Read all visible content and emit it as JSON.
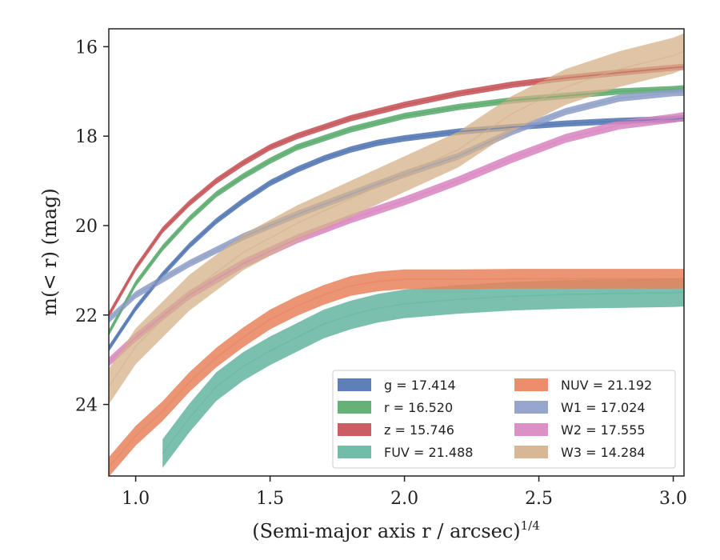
{
  "chart_data": {
    "type": "line",
    "title": "",
    "xlabel": "(Semi-major axis r / arcsec)",
    "xlabel_exponent": "1/4",
    "ylabel": "m(< r) (mag)",
    "xlim": [
      0.9,
      3.04
    ],
    "ylim": [
      25.6,
      15.6
    ],
    "y_inverted": true,
    "grid": false,
    "legend_position": "lower-right",
    "xticks": [
      "1.0",
      "1.5",
      "2.0",
      "2.5",
      "3.0"
    ],
    "yticks": [
      "16",
      "18",
      "20",
      "22",
      "24"
    ],
    "series": [
      {
        "name": "g = 17.414",
        "band": "g",
        "mag": "17.414",
        "color": "#4c72b0",
        "x": [
          0.9,
          1.0,
          1.1,
          1.2,
          1.3,
          1.4,
          1.5,
          1.6,
          1.7,
          1.8,
          1.9,
          2.0,
          2.2,
          2.4,
          2.6,
          2.8,
          3.0,
          3.04
        ],
        "y": [
          22.75,
          21.85,
          21.1,
          20.45,
          19.9,
          19.45,
          19.05,
          18.75,
          18.5,
          18.3,
          18.15,
          18.05,
          17.9,
          17.8,
          17.72,
          17.66,
          17.62,
          17.6
        ]
      },
      {
        "name": "r = 16.520",
        "band": "r",
        "mag": "16.520",
        "color": "#55a868",
        "x": [
          0.9,
          1.0,
          1.1,
          1.2,
          1.3,
          1.4,
          1.5,
          1.6,
          1.7,
          1.8,
          1.9,
          2.0,
          2.2,
          2.4,
          2.6,
          2.8,
          3.0,
          3.04
        ],
        "y": [
          22.4,
          21.3,
          20.5,
          19.85,
          19.3,
          18.9,
          18.55,
          18.25,
          18.05,
          17.85,
          17.7,
          17.55,
          17.35,
          17.2,
          17.1,
          17.0,
          16.95,
          16.93
        ]
      },
      {
        "name": "z = 15.746",
        "band": "z",
        "mag": "15.746",
        "color": "#c44e52",
        "x": [
          0.9,
          1.0,
          1.1,
          1.2,
          1.3,
          1.4,
          1.5,
          1.6,
          1.7,
          1.8,
          1.9,
          2.0,
          2.2,
          2.4,
          2.6,
          2.8,
          3.0,
          3.04
        ],
        "y": [
          22.0,
          20.95,
          20.1,
          19.5,
          19.0,
          18.6,
          18.25,
          18.0,
          17.8,
          17.6,
          17.45,
          17.3,
          17.05,
          16.85,
          16.7,
          16.58,
          16.47,
          16.45
        ]
      },
      {
        "name": "FUV = 21.488",
        "band": "FUV",
        "mag": "21.488",
        "color": "#64b5a0",
        "x": [
          1.1,
          1.2,
          1.3,
          1.4,
          1.5,
          1.6,
          1.7,
          1.8,
          1.9,
          2.0,
          2.2,
          2.4,
          2.6,
          2.8,
          3.0,
          3.04
        ],
        "y": [
          25.1,
          24.3,
          23.6,
          23.15,
          22.8,
          22.5,
          22.2,
          22.0,
          21.85,
          21.75,
          21.65,
          21.58,
          21.54,
          21.52,
          21.5,
          21.49
        ]
      },
      {
        "name": "NUV = 21.192",
        "band": "NUV",
        "mag": "21.192",
        "color": "#e8825c",
        "x": [
          0.9,
          1.0,
          1.1,
          1.2,
          1.3,
          1.4,
          1.5,
          1.6,
          1.7,
          1.8,
          1.9,
          2.0,
          2.2,
          2.4,
          2.6,
          2.8,
          3.0,
          3.04
        ],
        "y": [
          25.4,
          24.7,
          24.15,
          23.5,
          22.95,
          22.5,
          22.1,
          21.8,
          21.55,
          21.35,
          21.25,
          21.2,
          21.2,
          21.19,
          21.19,
          21.19,
          21.19,
          21.19
        ]
      },
      {
        "name": "W1 = 17.024",
        "band": "W1",
        "mag": "17.024",
        "color": "#8c9cc6",
        "x": [
          0.9,
          1.0,
          1.2,
          1.4,
          1.6,
          1.8,
          2.0,
          2.2,
          2.4,
          2.6,
          2.8,
          3.0,
          3.04
        ],
        "y": [
          22.1,
          21.55,
          20.85,
          20.25,
          19.75,
          19.3,
          18.85,
          18.45,
          17.9,
          17.45,
          17.15,
          17.03,
          17.02
        ]
      },
      {
        "name": "W2 = 17.555",
        "band": "W2",
        "mag": "17.555",
        "color": "#d884c0",
        "x": [
          0.9,
          1.0,
          1.2,
          1.4,
          1.6,
          1.8,
          2.0,
          2.2,
          2.4,
          2.6,
          2.8,
          3.0,
          3.04
        ],
        "y": [
          23.05,
          22.5,
          21.55,
          20.85,
          20.3,
          19.85,
          19.45,
          19.0,
          18.5,
          18.05,
          17.75,
          17.6,
          17.56
        ]
      },
      {
        "name": "W3 = 14.284",
        "band": "W3",
        "mag": "14.284",
        "color": "#d4b088",
        "x": [
          0.9,
          1.0,
          1.2,
          1.4,
          1.6,
          1.8,
          2.0,
          2.2,
          2.4,
          2.6,
          2.8,
          3.0,
          3.04
        ],
        "y": [
          23.6,
          22.7,
          21.5,
          20.6,
          19.95,
          19.4,
          18.85,
          18.3,
          17.5,
          16.9,
          16.5,
          16.2,
          16.1
        ]
      }
    ]
  }
}
